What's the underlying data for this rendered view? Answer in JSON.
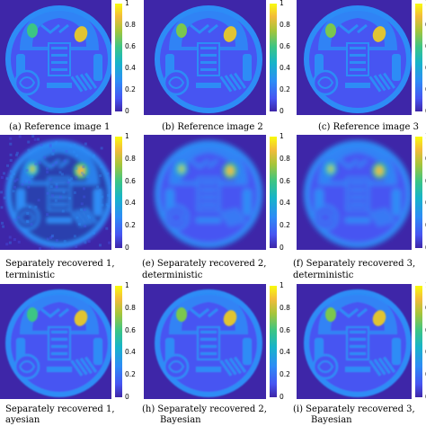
{
  "figure": {
    "colorbar_ticks": [
      "1",
      "0.8",
      "0.6",
      "0.4",
      "0.2",
      "0"
    ],
    "colormap": [
      "#3e26a8",
      "#4755f2",
      "#2d8cf6",
      "#17b4c9",
      "#3cc584",
      "#a6c53a",
      "#f3bb3a",
      "#f9fb0e"
    ],
    "panels": [
      {
        "caption_line1": "(a) Reference image 1",
        "caption_line2": "",
        "style": "sharp"
      },
      {
        "caption_line1": "(b) Reference image 2",
        "caption_line2": "",
        "style": "sharp"
      },
      {
        "caption_line1": "(c) Reference image 3",
        "caption_line2": "",
        "style": "sharp"
      },
      {
        "caption_line1": "Separately recovered 1,",
        "caption_line2": "terministic",
        "style": "noisy"
      },
      {
        "caption_line1": "(e) Separately recovered 2,",
        "caption_line2": "deterministic",
        "style": "blurred"
      },
      {
        "caption_line1": "(f) Separately recovered 3,",
        "caption_line2": "deterministic",
        "style": "blurred"
      },
      {
        "caption_line1": "Separately recovered 1,",
        "caption_line2": "ayesian",
        "style": "mild"
      },
      {
        "caption_line1": "(h) Separately recovered 2,",
        "caption_line2": "Bayesian",
        "style": "mild"
      },
      {
        "caption_line1": "(i) Separately recovered 3,",
        "caption_line2": "Bayesian",
        "style": "mild"
      }
    ]
  }
}
